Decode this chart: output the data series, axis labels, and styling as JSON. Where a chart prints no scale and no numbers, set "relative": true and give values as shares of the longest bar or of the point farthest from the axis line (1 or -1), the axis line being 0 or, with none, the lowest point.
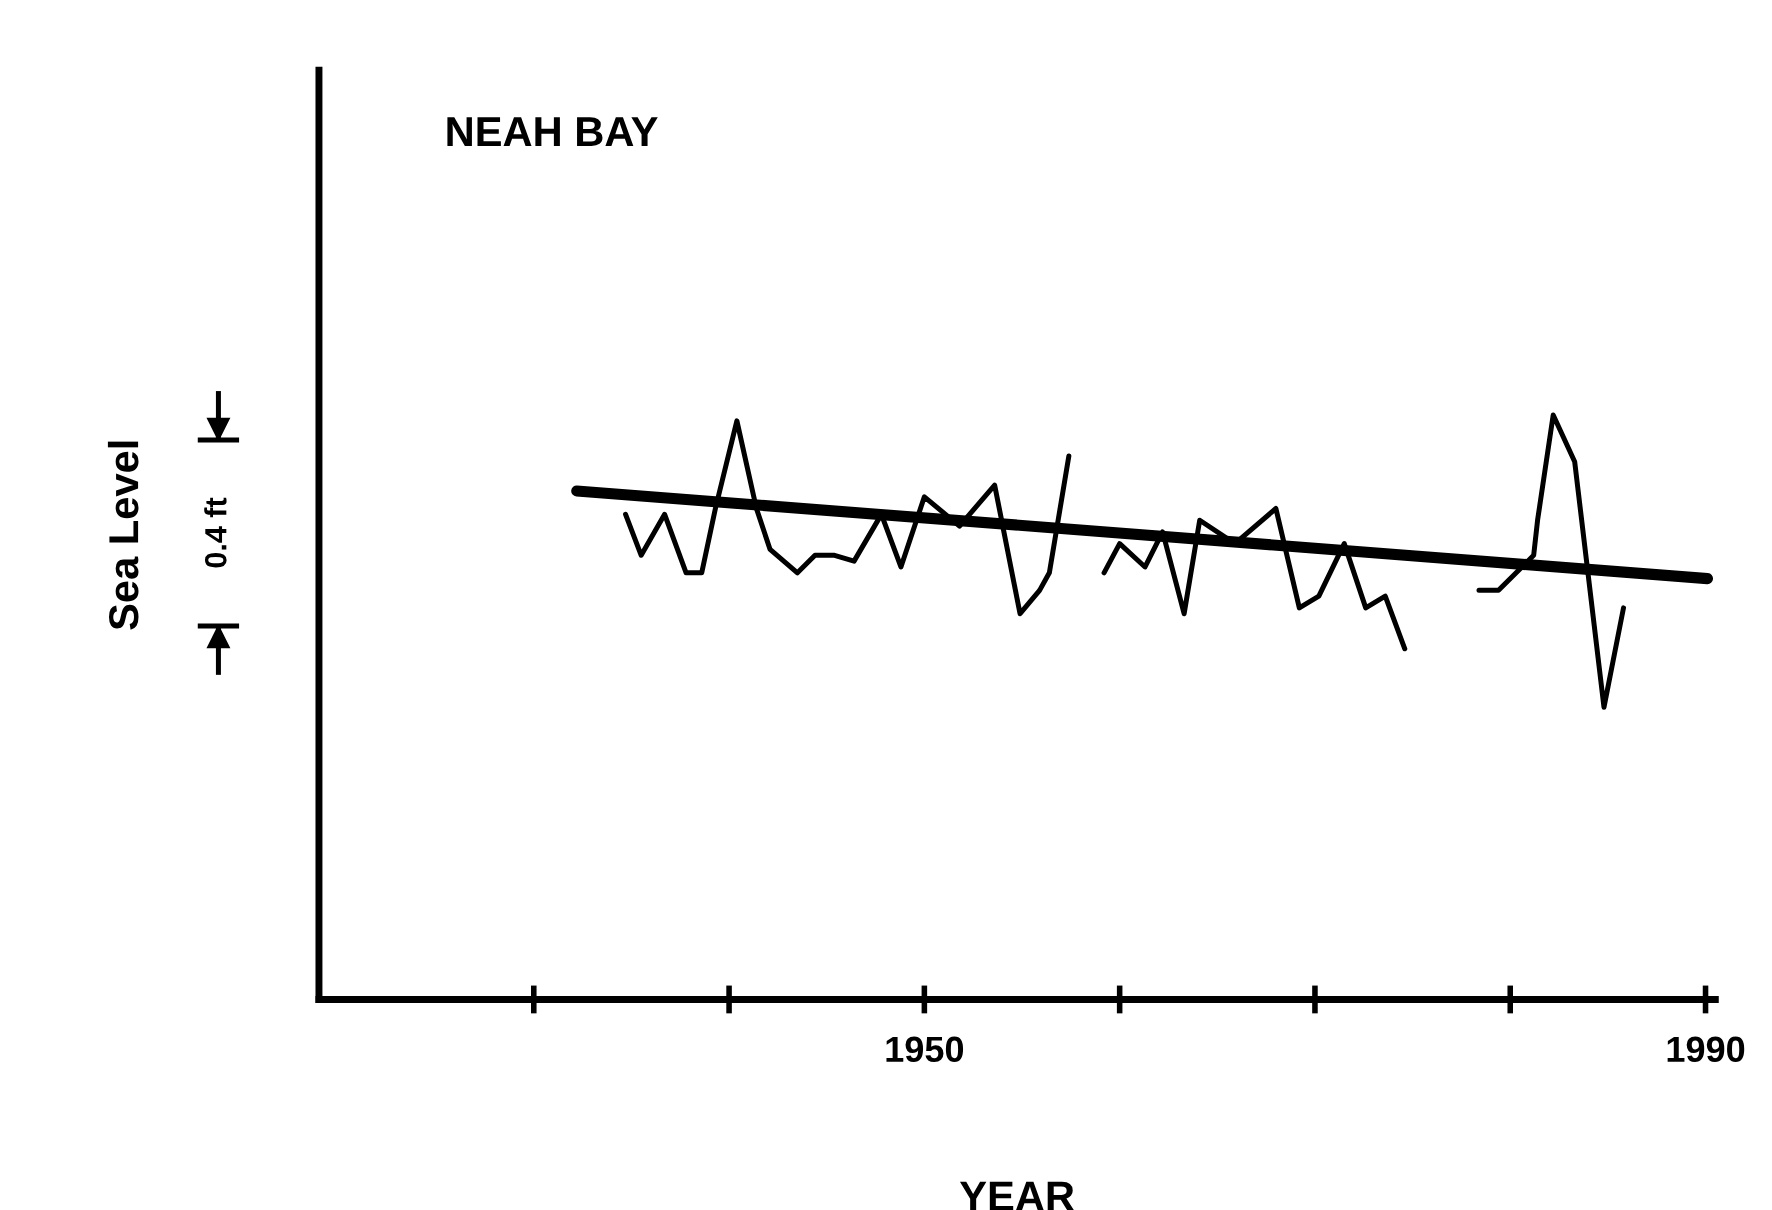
{
  "chart_data": {
    "type": "line",
    "relative": true,
    "title": "NEAH BAY",
    "xlabel": "YEAR",
    "ylabel": "Sea Level",
    "annotations": [
      "0.4 ft"
    ],
    "xlim": [
      1919,
      1990.5
    ],
    "xticks": [
      {
        "value": 1930,
        "label": null
      },
      {
        "value": 1940,
        "label": null
      },
      1950,
      {
        "value": 1960,
        "label": null
      },
      {
        "value": 1970,
        "label": null
      },
      {
        "value": 1980,
        "label": null
      },
      1990
    ],
    "grid": false,
    "legend": false,
    "marker": "none",
    "series": [
      {
        "color": "#000000",
        "line_style": "solid",
        "x": [
          1934.7,
          1935.5,
          1936.7,
          1937.8,
          1938.6,
          1939.3,
          1940.4,
          1941.4,
          1942.1,
          1943.5,
          1944.4,
          1945.4,
          1946.4,
          1947.8,
          1948.8,
          1950.0,
          1951.8,
          1953.6,
          1954.9,
          1955.9,
          1956.4,
          1957.4,
          1958.3,
          1959.2,
          1960.0,
          1961.3,
          1962.2,
          1963.3,
          1964.1,
          1965.9,
          1968.0,
          1969.2,
          1970.2,
          1971.5,
          1972.6,
          1973.6,
          1974.6,
          1976.5,
          1978.4,
          1979.4,
          1981.2,
          1981.4,
          1982.2,
          1983.3,
          1984.8,
          1985.8
        ],
        "values": [
          0.83,
          0.76,
          0.83,
          0.73,
          0.73,
          0.84,
          0.99,
          0.84,
          0.77,
          0.73,
          0.76,
          0.76,
          0.75,
          0.83,
          0.74,
          0.86,
          0.81,
          0.88,
          0.66,
          0.7,
          0.73,
          0.93,
          null,
          0.73,
          0.78,
          0.74,
          0.8,
          0.66,
          0.82,
          0.78,
          0.84,
          0.67,
          0.69,
          0.78,
          0.67,
          0.69,
          0.6,
          null,
          0.7,
          0.7,
          0.76,
          0.82,
          1.0,
          0.92,
          0.5,
          0.67
        ]
      },
      {
        "color": "#000000",
        "line_style": "solid",
        "x": [
          1932.2,
          1990.1
        ],
        "values": [
          0.87,
          0.72
        ]
      }
    ]
  }
}
